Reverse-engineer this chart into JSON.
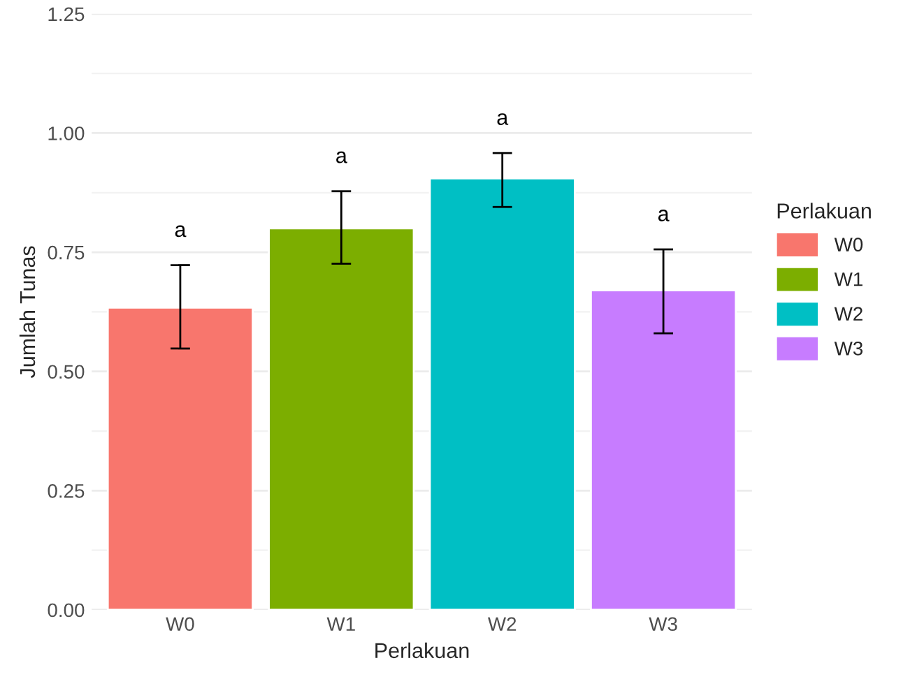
{
  "chart_data": {
    "type": "bar",
    "xlabel": "Perlakuan",
    "ylabel": "Jumlah Tunas",
    "legend_title": "Perlakuan",
    "categories": [
      "W0",
      "W1",
      "W2",
      "W3"
    ],
    "series": [
      {
        "name": "W0",
        "color": "#f8766d",
        "values": [
          0.634,
          null,
          null,
          null
        ],
        "errors": [
          [
            0.548,
            0.723
          ],
          null,
          null,
          null
        ]
      },
      {
        "name": "W1",
        "color": "#7cae00",
        "values": [
          null,
          0.8,
          null,
          null
        ],
        "errors": [
          null,
          [
            0.726,
            0.878
          ],
          null,
          null
        ]
      },
      {
        "name": "W2",
        "color": "#00bfc4",
        "values": [
          null,
          null,
          0.905,
          null
        ],
        "errors": [
          null,
          null,
          [
            0.845,
            0.958
          ],
          null
        ]
      },
      {
        "name": "W3",
        "color": "#c77cff",
        "values": [
          null,
          null,
          null,
          0.67
        ],
        "errors": [
          null,
          null,
          null,
          [
            0.58,
            0.756
          ]
        ]
      }
    ],
    "ylim": [
      0,
      1.25
    ],
    "yticks": [
      {
        "value": 0,
        "label": "0.00"
      },
      {
        "value": 0.25,
        "label": "0.25"
      },
      {
        "value": 0.5,
        "label": "0.50"
      },
      {
        "value": 0.75,
        "label": "0.75"
      },
      {
        "value": 1,
        "label": "1.00"
      },
      {
        "value": 1.25,
        "label": "1.25"
      }
    ],
    "grid": "y",
    "legend": "right",
    "annotations": [
      "a",
      "a",
      "a",
      "a"
    ]
  }
}
